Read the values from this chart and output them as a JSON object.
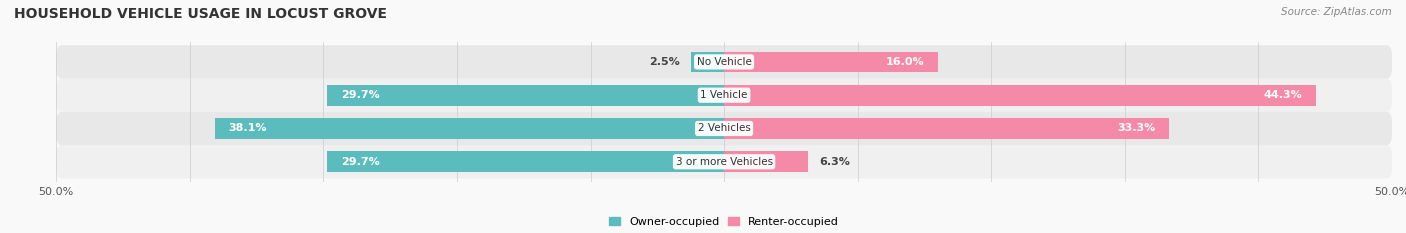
{
  "title": "HOUSEHOLD VEHICLE USAGE IN LOCUST GROVE",
  "source_text": "Source: ZipAtlas.com",
  "categories": [
    "3 or more Vehicles",
    "2 Vehicles",
    "1 Vehicle",
    "No Vehicle"
  ],
  "owner_values": [
    29.7,
    38.1,
    29.7,
    2.5
  ],
  "renter_values": [
    6.3,
    33.3,
    44.3,
    16.0
  ],
  "owner_color": "#5bbcbe",
  "renter_color": "#f589a8",
  "row_bg_color_odd": "#f0f0f0",
  "row_bg_color_even": "#e8e8e8",
  "fig_bg_color": "#f9f9f9",
  "xlim_left": -50,
  "xlim_right": 50,
  "owner_label": "Owner-occupied",
  "renter_label": "Renter-occupied",
  "bar_height": 0.62,
  "title_fontsize": 10,
  "label_fontsize": 8,
  "tick_fontsize": 8,
  "source_fontsize": 7.5
}
